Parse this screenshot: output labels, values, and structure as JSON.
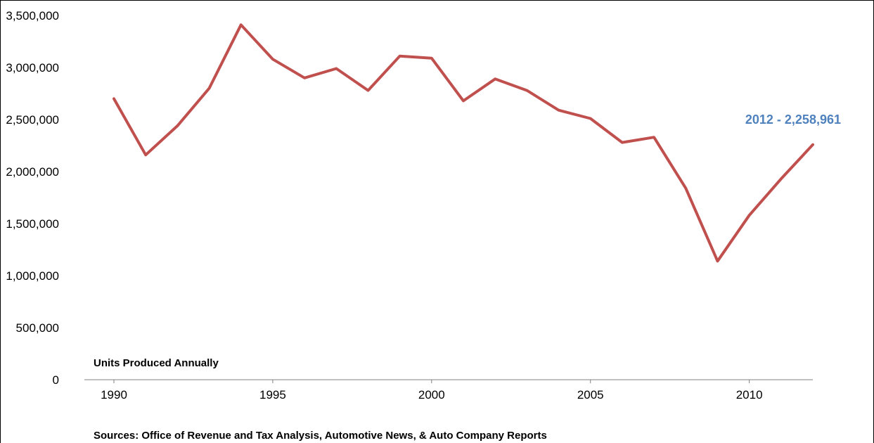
{
  "chart_data": {
    "type": "line",
    "title": "",
    "xlabel": "",
    "ylabel": "",
    "ylim": [
      0,
      3500000
    ],
    "xlim": [
      1990,
      2012
    ],
    "y_ticks": [
      0,
      500000,
      1000000,
      1500000,
      2000000,
      2500000,
      3000000,
      3500000
    ],
    "y_tick_labels": [
      "0",
      "500,000",
      "1,000,000",
      "1,500,000",
      "2,000,000",
      "2,500,000",
      "3,000,000",
      "3,500,000"
    ],
    "x_ticks": [
      1990,
      1995,
      2000,
      2005,
      2010
    ],
    "x_tick_labels": [
      "1990",
      "1995",
      "2000",
      "2005",
      "2010"
    ],
    "grid": false,
    "line_color": "#C0504D",
    "annotation_color": "#4F81BD",
    "series": [
      {
        "x": [
          1990,
          1991,
          1992,
          1993,
          1994,
          1995,
          1996,
          1997,
          1998,
          1999,
          2000,
          2001,
          2002,
          2003,
          2004,
          2005,
          2006,
          2007,
          2008,
          2009,
          2010,
          2011,
          2012
        ],
        "values": [
          2700000,
          2160000,
          2440000,
          2800000,
          3410000,
          3080000,
          2900000,
          2990000,
          2780000,
          3110000,
          3090000,
          2680000,
          2890000,
          2780000,
          2590000,
          2510000,
          2280000,
          2330000,
          1840000,
          1140000,
          1580000,
          1930000,
          2258961
        ]
      }
    ],
    "annotations": {
      "end_value": "2012 -  2,258,961",
      "series_label": "Units Produced Annually",
      "sources": "Sources: Office of Revenue and Tax Analysis, Automotive News, & Auto Company Reports"
    }
  }
}
